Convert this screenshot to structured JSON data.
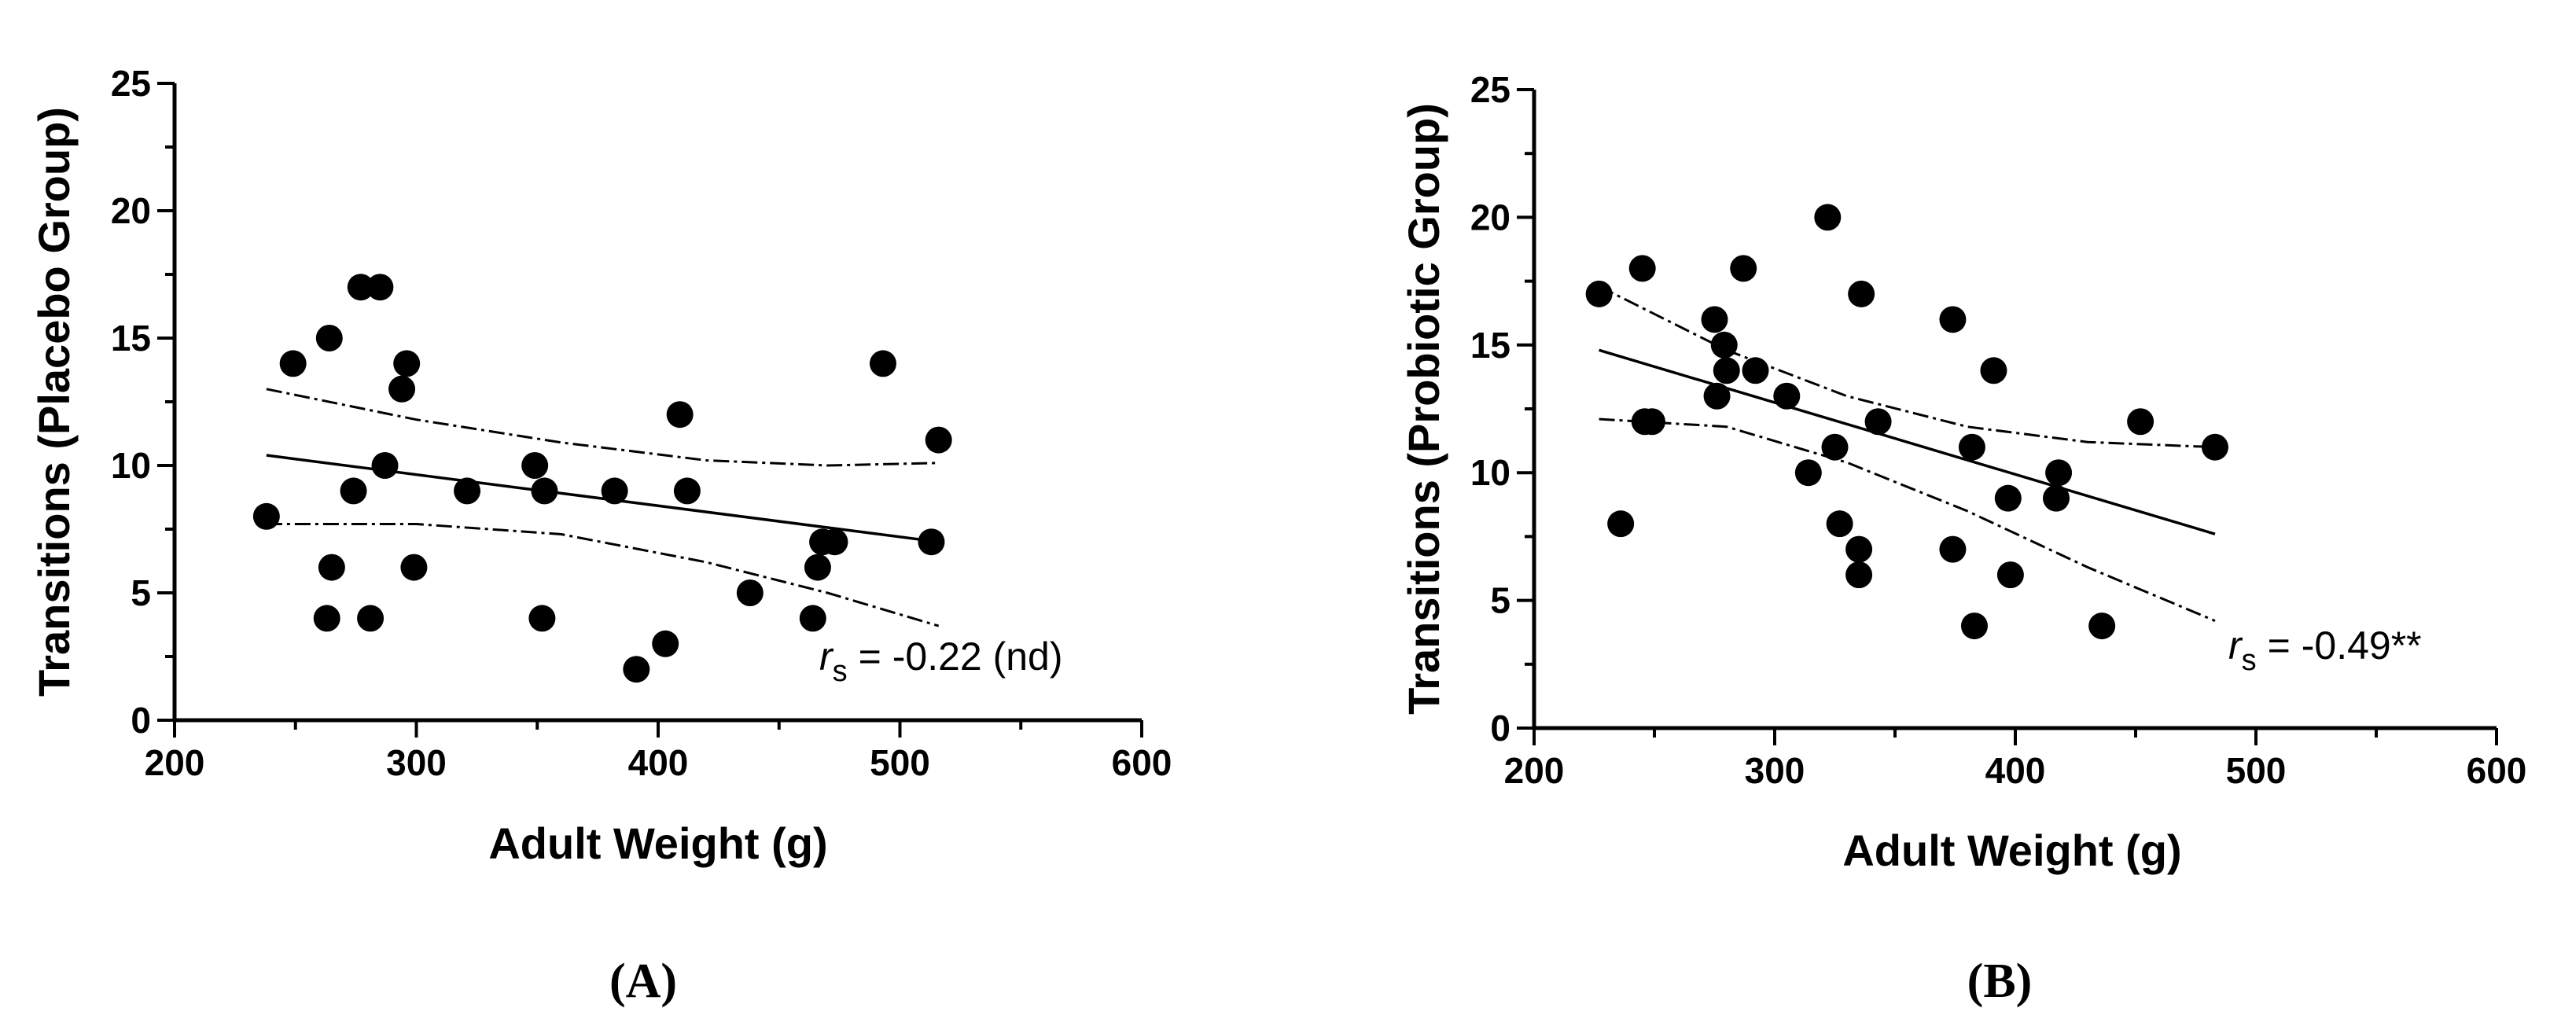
{
  "chart_data": [
    {
      "type": "scatter",
      "panel_label": "(A)",
      "xlabel": "Adult Weight (g)",
      "ylabel": "Transitions (Placebo Group)",
      "xlim": [
        200,
        600
      ],
      "ylim": [
        0,
        25
      ],
      "xticks": [
        200,
        300,
        400,
        500,
        600
      ],
      "yticks": [
        0,
        5,
        10,
        15,
        20,
        25
      ],
      "xtick_labels": [
        "200",
        "300",
        "400",
        "500",
        "600"
      ],
      "ytick_labels": [
        "0",
        "5",
        "10",
        "15",
        "20",
        "25"
      ],
      "points": [
        [
          238,
          8
        ],
        [
          249,
          14
        ],
        [
          263,
          4
        ],
        [
          264,
          15
        ],
        [
          265,
          6
        ],
        [
          274,
          9
        ],
        [
          277,
          17
        ],
        [
          281,
          4
        ],
        [
          285,
          17
        ],
        [
          287,
          10
        ],
        [
          294,
          13
        ],
        [
          296,
          14
        ],
        [
          299,
          6
        ],
        [
          321,
          9
        ],
        [
          349,
          10
        ],
        [
          352,
          4
        ],
        [
          353,
          9
        ],
        [
          382,
          9
        ],
        [
          391,
          2
        ],
        [
          403,
          3
        ],
        [
          409,
          12
        ],
        [
          412,
          9
        ],
        [
          438,
          5
        ],
        [
          464,
          4
        ],
        [
          466,
          6
        ],
        [
          468,
          7
        ],
        [
          473,
          7
        ],
        [
          493,
          14
        ],
        [
          513,
          7
        ],
        [
          516,
          11
        ]
      ],
      "regression_line": [
        [
          238,
          10.4
        ],
        [
          516,
          7.0
        ]
      ],
      "ci_upper": [
        [
          238,
          13.0
        ],
        [
          300,
          11.8
        ],
        [
          360,
          10.9
        ],
        [
          420,
          10.2
        ],
        [
          470,
          10.0
        ],
        [
          516,
          10.1
        ]
      ],
      "ci_lower": [
        [
          238,
          7.7
        ],
        [
          300,
          7.7
        ],
        [
          360,
          7.3
        ],
        [
          420,
          6.2
        ],
        [
          470,
          5.0
        ],
        [
          516,
          3.7
        ]
      ],
      "annotation": {
        "symbol": "r",
        "subscript": "s",
        "text": "=  -0.22 (nd)"
      }
    },
    {
      "type": "scatter",
      "panel_label": "(B)",
      "xlabel": "Adult Weight (g)",
      "ylabel": "Transitions (Probiotic Group)",
      "xlim": [
        200,
        600
      ],
      "ylim": [
        0,
        25
      ],
      "xticks": [
        200,
        300,
        400,
        500,
        600
      ],
      "yticks": [
        0,
        5,
        10,
        15,
        20,
        25
      ],
      "xtick_labels": [
        "200",
        "300",
        "400",
        "500",
        "600"
      ],
      "ytick_labels": [
        "0",
        "5",
        "10",
        "15",
        "20",
        "25"
      ],
      "points": [
        [
          227,
          17
        ],
        [
          236,
          8
        ],
        [
          245,
          18
        ],
        [
          246,
          12
        ],
        [
          249,
          12
        ],
        [
          275,
          16
        ],
        [
          276,
          13
        ],
        [
          279,
          15
        ],
        [
          280,
          14
        ],
        [
          287,
          18
        ],
        [
          292,
          14
        ],
        [
          305,
          13
        ],
        [
          314,
          10
        ],
        [
          322,
          20
        ],
        [
          325,
          11
        ],
        [
          327,
          8
        ],
        [
          335,
          7
        ],
        [
          335,
          6
        ],
        [
          336,
          17
        ],
        [
          343,
          12
        ],
        [
          374,
          16
        ],
        [
          374,
          7
        ],
        [
          382,
          11
        ],
        [
          383,
          4
        ],
        [
          391,
          14
        ],
        [
          397,
          9
        ],
        [
          398,
          6
        ],
        [
          417,
          9
        ],
        [
          418,
          10
        ],
        [
          436,
          4
        ],
        [
          452,
          12
        ],
        [
          483,
          11
        ]
      ],
      "regression_line": [
        [
          227,
          14.8
        ],
        [
          483,
          7.6
        ]
      ],
      "ci_upper": [
        [
          227,
          17.3
        ],
        [
          280,
          14.8
        ],
        [
          330,
          13.0
        ],
        [
          380,
          11.8
        ],
        [
          430,
          11.2
        ],
        [
          483,
          11.0
        ]
      ],
      "ci_lower": [
        [
          227,
          12.1
        ],
        [
          280,
          11.8
        ],
        [
          330,
          10.4
        ],
        [
          380,
          8.5
        ],
        [
          430,
          6.3
        ],
        [
          483,
          4.2
        ]
      ],
      "annotation": {
        "symbol": "r",
        "subscript": "s",
        "text": "=  -0.49**"
      }
    }
  ]
}
